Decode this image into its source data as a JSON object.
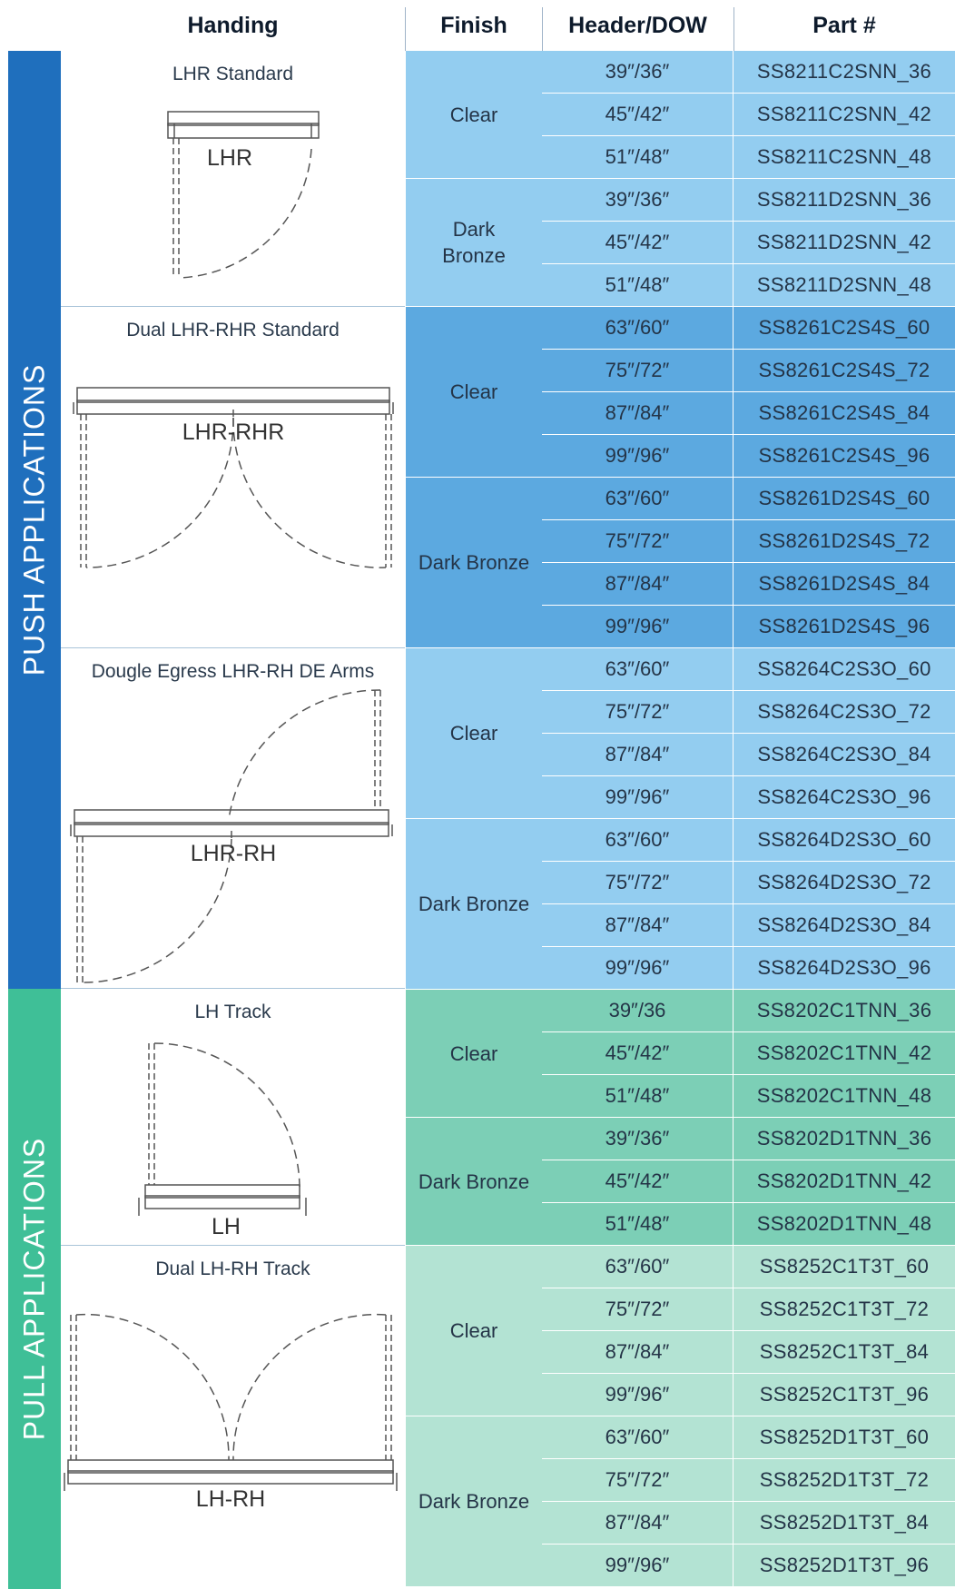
{
  "header": {
    "handing": "Handing",
    "finish": "Finish",
    "size": "Header/DOW",
    "part": "Part #"
  },
  "bands": {
    "push": "PUSH APPLICATIONS",
    "pull": "PULL APPLICATIONS"
  },
  "colors": {
    "push_band": "#1f6fbd",
    "pull_band": "#3fbf97",
    "light_blue": "#93cdf0",
    "mid_blue": "#5ca9e0",
    "mid_green": "#7ccfb6",
    "light_green": "#b3e3d3"
  },
  "groups": [
    {
      "title": "LHR Standard",
      "label": "LHR",
      "finishes": [
        {
          "name": "Clear",
          "rows": [
            [
              "39″/36″",
              "SS8211C2SNN_36"
            ],
            [
              "45″/42″",
              "SS8211C2SNN_42"
            ],
            [
              "51″/48″",
              "SS8211C2SNN_48"
            ]
          ]
        },
        {
          "name": "Dark\nBronze",
          "rows": [
            [
              "39″/36″",
              "SS8211D2SNN_36"
            ],
            [
              "45″/42″",
              "SS8211D2SNN_42"
            ],
            [
              "51″/48″",
              "SS8211D2SNN_48"
            ]
          ]
        }
      ]
    },
    {
      "title": "Dual LHR-RHR Standard",
      "label": "LHR-RHR",
      "finishes": [
        {
          "name": "Clear",
          "rows": [
            [
              "63″/60″",
              "SS8261C2S4S_60"
            ],
            [
              "75″/72″",
              "SS8261C2S4S_72"
            ],
            [
              "87″/84″",
              "SS8261C2S4S_84"
            ],
            [
              "99″/96″",
              "SS8261C2S4S_96"
            ]
          ]
        },
        {
          "name": "Dark Bronze",
          "rows": [
            [
              "63″/60″",
              "SS8261D2S4S_60"
            ],
            [
              "75″/72″",
              "SS8261D2S4S_72"
            ],
            [
              "87″/84″",
              "SS8261D2S4S_84"
            ],
            [
              "99″/96″",
              "SS8261D2S4S_96"
            ]
          ]
        }
      ]
    },
    {
      "title": "Dougle Egress LHR-RH DE Arms",
      "label": "LHR-RH",
      "finishes": [
        {
          "name": "Clear",
          "rows": [
            [
              "63″/60″",
              "SS8264C2S3O_60"
            ],
            [
              "75″/72″",
              "SS8264C2S3O_72"
            ],
            [
              "87″/84″",
              "SS8264C2S3O_84"
            ],
            [
              "99″/96″",
              "SS8264C2S3O_96"
            ]
          ]
        },
        {
          "name": "Dark Bronze",
          "rows": [
            [
              "63″/60″",
              "SS8264D2S3O_60"
            ],
            [
              "75″/72″",
              "SS8264D2S3O_72"
            ],
            [
              "87″/84″",
              "SS8264D2S3O_84"
            ],
            [
              "99″/96″",
              "SS8264D2S3O_96"
            ]
          ]
        }
      ]
    },
    {
      "title": "LH Track",
      "label": "LH",
      "finishes": [
        {
          "name": "Clear",
          "rows": [
            [
              "39″/36",
              "SS8202C1TNN_36"
            ],
            [
              "45″/42″",
              "SS8202C1TNN_42"
            ],
            [
              "51″/48″",
              "SS8202C1TNN_48"
            ]
          ]
        },
        {
          "name": "Dark Bronze",
          "rows": [
            [
              "39″/36″",
              "SS8202D1TNN_36"
            ],
            [
              "45″/42″",
              "SS8202D1TNN_42"
            ],
            [
              "51″/48″",
              "SS8202D1TNN_48"
            ]
          ]
        }
      ]
    },
    {
      "title": "Dual LH-RH Track",
      "label": "LH-RH",
      "finishes": [
        {
          "name": "Clear",
          "rows": [
            [
              "63″/60″",
              "SS8252C1T3T_60"
            ],
            [
              "75″/72″",
              "SS8252C1T3T_72"
            ],
            [
              "87″/84″",
              "SS8252C1T3T_84"
            ],
            [
              "99″/96″",
              "SS8252C1T3T_96"
            ]
          ]
        },
        {
          "name": "Dark Bronze",
          "rows": [
            [
              "63″/60″",
              "SS8252D1T3T_60"
            ],
            [
              "75″/72″",
              "SS8252D1T3T_72"
            ],
            [
              "87″/84″",
              "SS8252D1T3T_84"
            ],
            [
              "99″/96″",
              "SS8252D1T3T_96"
            ]
          ]
        }
      ]
    }
  ]
}
